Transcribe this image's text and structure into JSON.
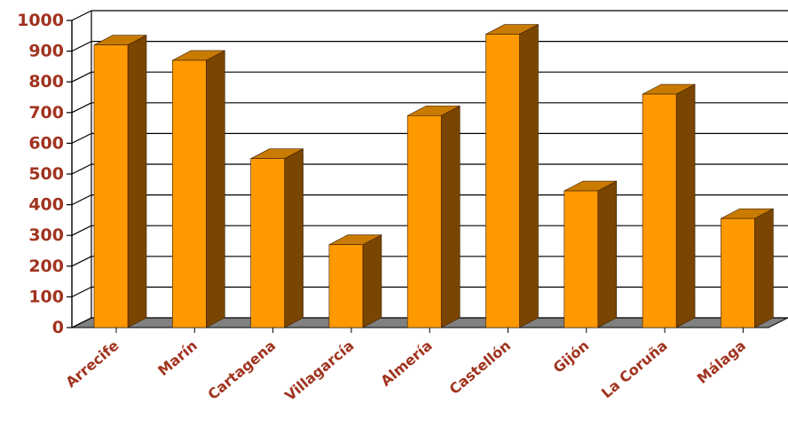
{
  "chart_data": {
    "type": "bar",
    "title": "",
    "xlabel": "",
    "ylabel": "",
    "categories": [
      "Arrecife",
      "Marín",
      "Cartagena",
      "Villagarcía",
      "Almería",
      "Castellón",
      "Gijón",
      "La Coruña",
      "Málaga"
    ],
    "values": [
      920,
      870,
      550,
      270,
      690,
      955,
      445,
      760,
      355
    ],
    "ylim": [
      0,
      1000
    ],
    "yticks": [
      "0",
      "100",
      "200",
      "300",
      "400",
      "500",
      "600",
      "700",
      "800",
      "900",
      "1000"
    ],
    "grid": true,
    "legend": "none",
    "style": "3d"
  },
  "colors": {
    "bar_front": "#ff9900",
    "bar_side": "#7a4500",
    "bar_top": "#c97a00",
    "label_text": "#a0331e",
    "floor": "#808080",
    "grid": "#000000"
  }
}
